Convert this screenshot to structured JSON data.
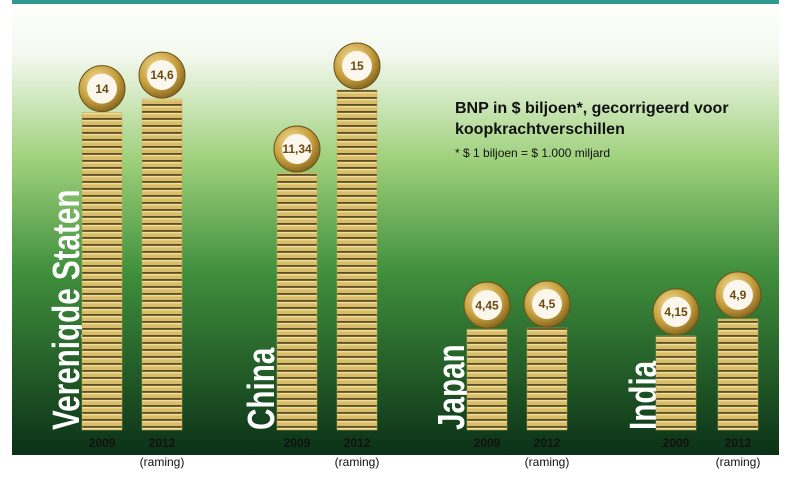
{
  "chart_data": {
    "type": "bar",
    "title": "BNP in $ biljoen*, gecorrigeerd voor koopkrachtverschillen",
    "subtitle": "* $ 1 biljoen = $ 1.000 miljard",
    "categories": [
      "Verenigde Staten",
      "China",
      "Japan",
      "India"
    ],
    "series": [
      {
        "name": "2009",
        "color": "#c9a94e",
        "values": [
          14,
          11.34,
          4.45,
          4.15
        ],
        "value_labels": [
          "14",
          "11,34",
          "4,45",
          "4,15"
        ]
      },
      {
        "name": "2012",
        "note": "(raming)",
        "color": "#c9a94e",
        "values": [
          14.6,
          15,
          4.5,
          4.9
        ],
        "value_labels": [
          "14,6",
          "15",
          "4,5",
          "4,9"
        ]
      }
    ]
  }
}
